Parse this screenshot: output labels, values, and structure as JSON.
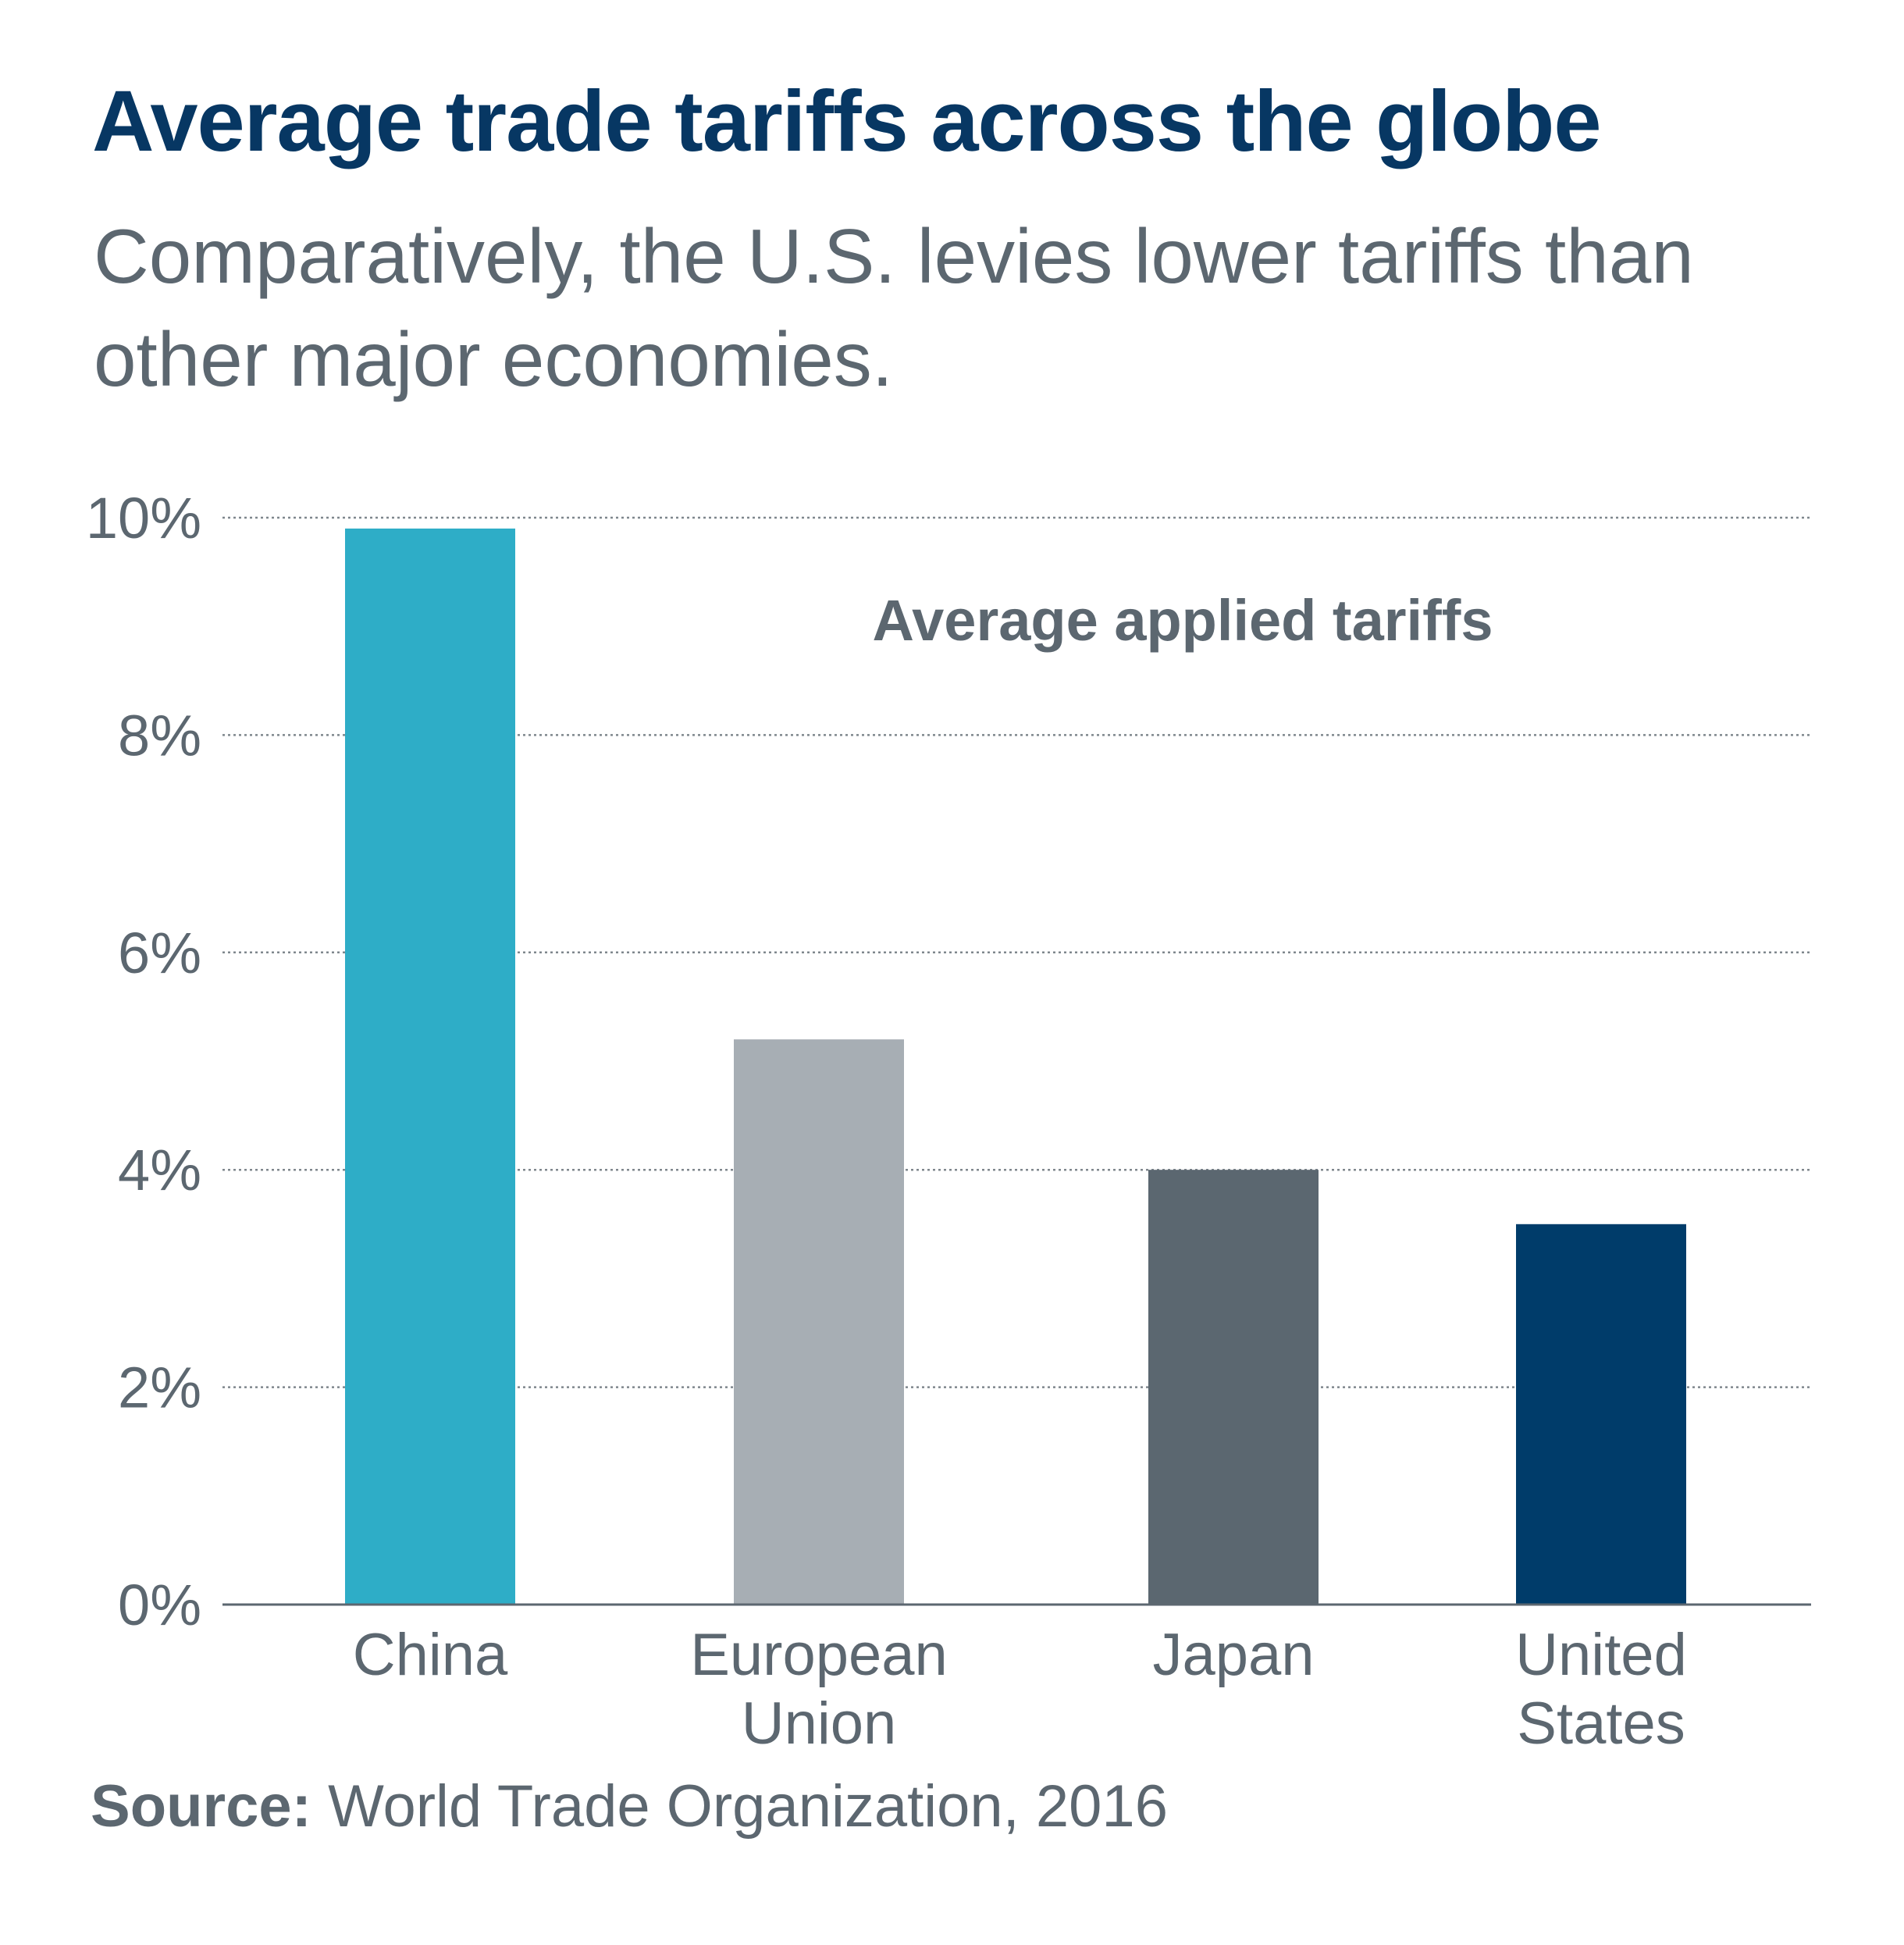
{
  "header": {
    "title": "Average trade tariffs across the globe",
    "subtitle": "Comparatively, the U.S. levies lower tariffs than other major economies."
  },
  "footer": {
    "source_label": "Source:",
    "source_text": "World Trade Organization, 2016"
  },
  "colors": {
    "title": "#073763",
    "text": "#5c6770",
    "grid": "#7f878d",
    "axis": "#5c6770"
  },
  "chart_data": {
    "type": "bar",
    "annotation": "Average applied tariffs",
    "categories": [
      [
        "China"
      ],
      [
        "European",
        "Union"
      ],
      [
        "Japan"
      ],
      [
        "United",
        "States"
      ]
    ],
    "values": [
      9.9,
      5.2,
      4.0,
      3.5
    ],
    "bar_colors": [
      "#2eadc7",
      "#a7aeb4",
      "#5b6770",
      "#003c6a"
    ],
    "yticks": [
      0,
      2,
      4,
      6,
      8,
      10
    ],
    "ytick_labels": [
      "0%",
      "2%",
      "4%",
      "6%",
      "8%",
      "10%"
    ],
    "ylim": [
      0,
      10
    ],
    "grid": true,
    "xlabel": "",
    "ylabel": ""
  }
}
